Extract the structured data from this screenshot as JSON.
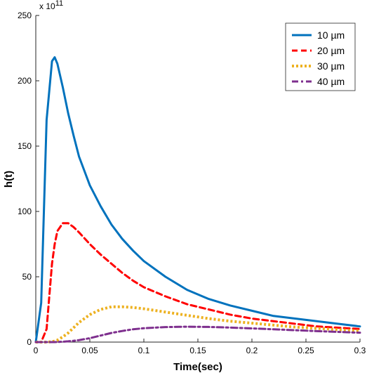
{
  "chart_data": {
    "type": "line",
    "title": "",
    "xlabel": "Time(sec)",
    "ylabel": "h(t)",
    "y_multiplier_label": "x 10",
    "y_multiplier_exponent": "11",
    "xlim": [
      0,
      0.3
    ],
    "ylim": [
      0,
      250
    ],
    "x_ticks": [
      0,
      0.05,
      0.1,
      0.15,
      0.2,
      0.25,
      0.3
    ],
    "x_tick_labels": [
      "0",
      "0.05",
      "0.1",
      "0.15",
      "0.2",
      "0.25",
      "0.3"
    ],
    "y_ticks": [
      0,
      50,
      100,
      150,
      200,
      250
    ],
    "y_tick_labels": [
      "0",
      "50",
      "100",
      "150",
      "200",
      "250"
    ],
    "grid": false,
    "legend_position": "top-right",
    "x": [
      0,
      0.005,
      0.01,
      0.015,
      0.0175,
      0.02,
      0.025,
      0.03,
      0.035,
      0.04,
      0.05,
      0.06,
      0.07,
      0.08,
      0.09,
      0.1,
      0.12,
      0.14,
      0.16,
      0.18,
      0.2,
      0.22,
      0.24,
      0.26,
      0.28,
      0.3
    ],
    "series": [
      {
        "name": "10 µm",
        "color": "#0072BD",
        "style": "solid",
        "values": [
          0,
          30,
          170,
          215,
          218,
          213,
          195,
          175,
          158,
          142,
          120,
          104,
          90,
          79,
          70,
          62,
          50,
          40,
          33,
          28,
          24,
          20,
          18,
          16,
          14,
          12
        ]
      },
      {
        "name": "20 µm",
        "color": "#FF0000",
        "style": "dashed",
        "values": [
          0,
          0,
          10,
          60,
          75,
          85,
          91,
          91,
          88,
          84,
          75,
          67,
          60,
          53,
          47,
          42,
          35,
          29,
          25,
          21,
          18,
          16,
          14,
          12,
          11,
          10
        ]
      },
      {
        "name": "30 µm",
        "color": "#EDB120",
        "style": "dotted",
        "values": [
          0,
          0,
          0,
          0.3,
          0.8,
          1.5,
          4,
          7,
          11,
          15,
          21,
          25,
          27,
          27,
          26.5,
          25.5,
          23,
          20.5,
          18,
          16,
          14.5,
          13,
          11.5,
          10.5,
          9.5,
          8.5
        ]
      },
      {
        "name": "40 µm",
        "color": "#7E2F8E",
        "style": "dashdot",
        "values": [
          0,
          0,
          0,
          0,
          0,
          0.1,
          0.3,
          0.6,
          1,
          1.5,
          3,
          5,
          7,
          8.5,
          9.8,
          10.6,
          11.5,
          11.8,
          11.6,
          11.1,
          10.5,
          9.8,
          9.1,
          8.4,
          7.8,
          7.2
        ]
      }
    ]
  }
}
